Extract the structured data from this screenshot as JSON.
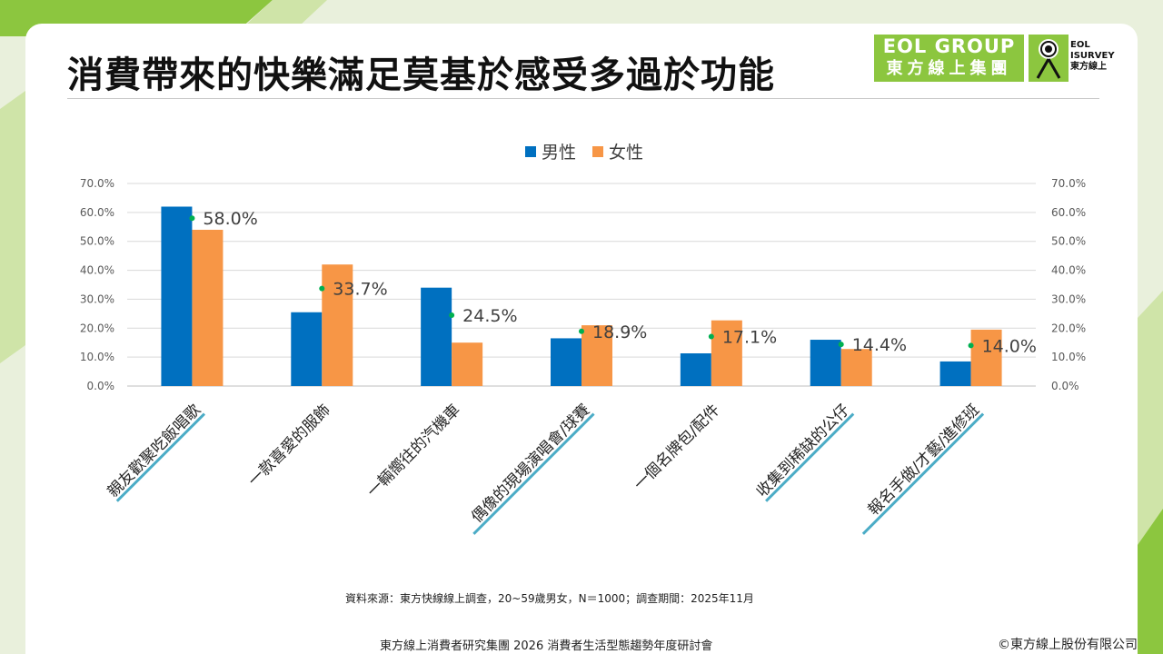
{
  "title": "消費帶來的快樂滿足莫基於感受多過於功能",
  "logo": {
    "eol_line1": "EOL GROUP",
    "eol_line2": "東方線上集團",
    "isurvey_line1": "EOL",
    "isurvey_line2": "ISURVEY",
    "isurvey_line3": "東方線上"
  },
  "source_note": "資料來源：東方快線線上調查，20~59歲男女，N＝1000；調查期間：2025年11月",
  "footer_text": "東方線上消費者研究集團 2026 消費者生活型態趨勢年度研討會",
  "copyright": "©東方線上股份有限公司",
  "colors": {
    "male": "#0070c0",
    "female": "#f79646",
    "dot": "#00b050",
    "underline": "#4bacc6",
    "green_deco": "#8cc63f"
  },
  "chart_data": {
    "type": "bar",
    "categories": [
      "親友歡聚吃飯唱歌",
      "一款喜愛的服飾",
      "一輛嚮往的汽機車",
      "偶像的現場演唱會/球賽",
      "一個名牌包/配件",
      "收集到稀缺的公仔",
      "報名手做/才藝/進修班"
    ],
    "series": [
      {
        "name": "男性",
        "values": [
          62.0,
          25.5,
          34.0,
          16.5,
          11.3,
          16.0,
          8.5
        ]
      },
      {
        "name": "女性",
        "values": [
          54.0,
          42.0,
          15.0,
          21.0,
          22.7,
          12.8,
          19.5
        ]
      }
    ],
    "total_values": [
      58.0,
      33.7,
      24.5,
      18.9,
      17.1,
      14.4,
      14.0
    ],
    "total_labels": [
      "58.0%",
      "33.7%",
      "24.5%",
      "18.9%",
      "17.1%",
      "14.4%",
      "14.0%"
    ],
    "y_ticks": [
      0,
      10,
      20,
      30,
      40,
      50,
      60,
      70
    ],
    "y_tick_labels": [
      "0.0%",
      "10.0%",
      "20.0%",
      "30.0%",
      "40.0%",
      "50.0%",
      "60.0%",
      "70.0%"
    ],
    "ylim": [
      0,
      70
    ],
    "highlighted_categories": [
      0,
      3,
      5,
      6
    ],
    "legend_position": "top",
    "grid": true,
    "title": "",
    "xlabel": "",
    "ylabel": ""
  }
}
